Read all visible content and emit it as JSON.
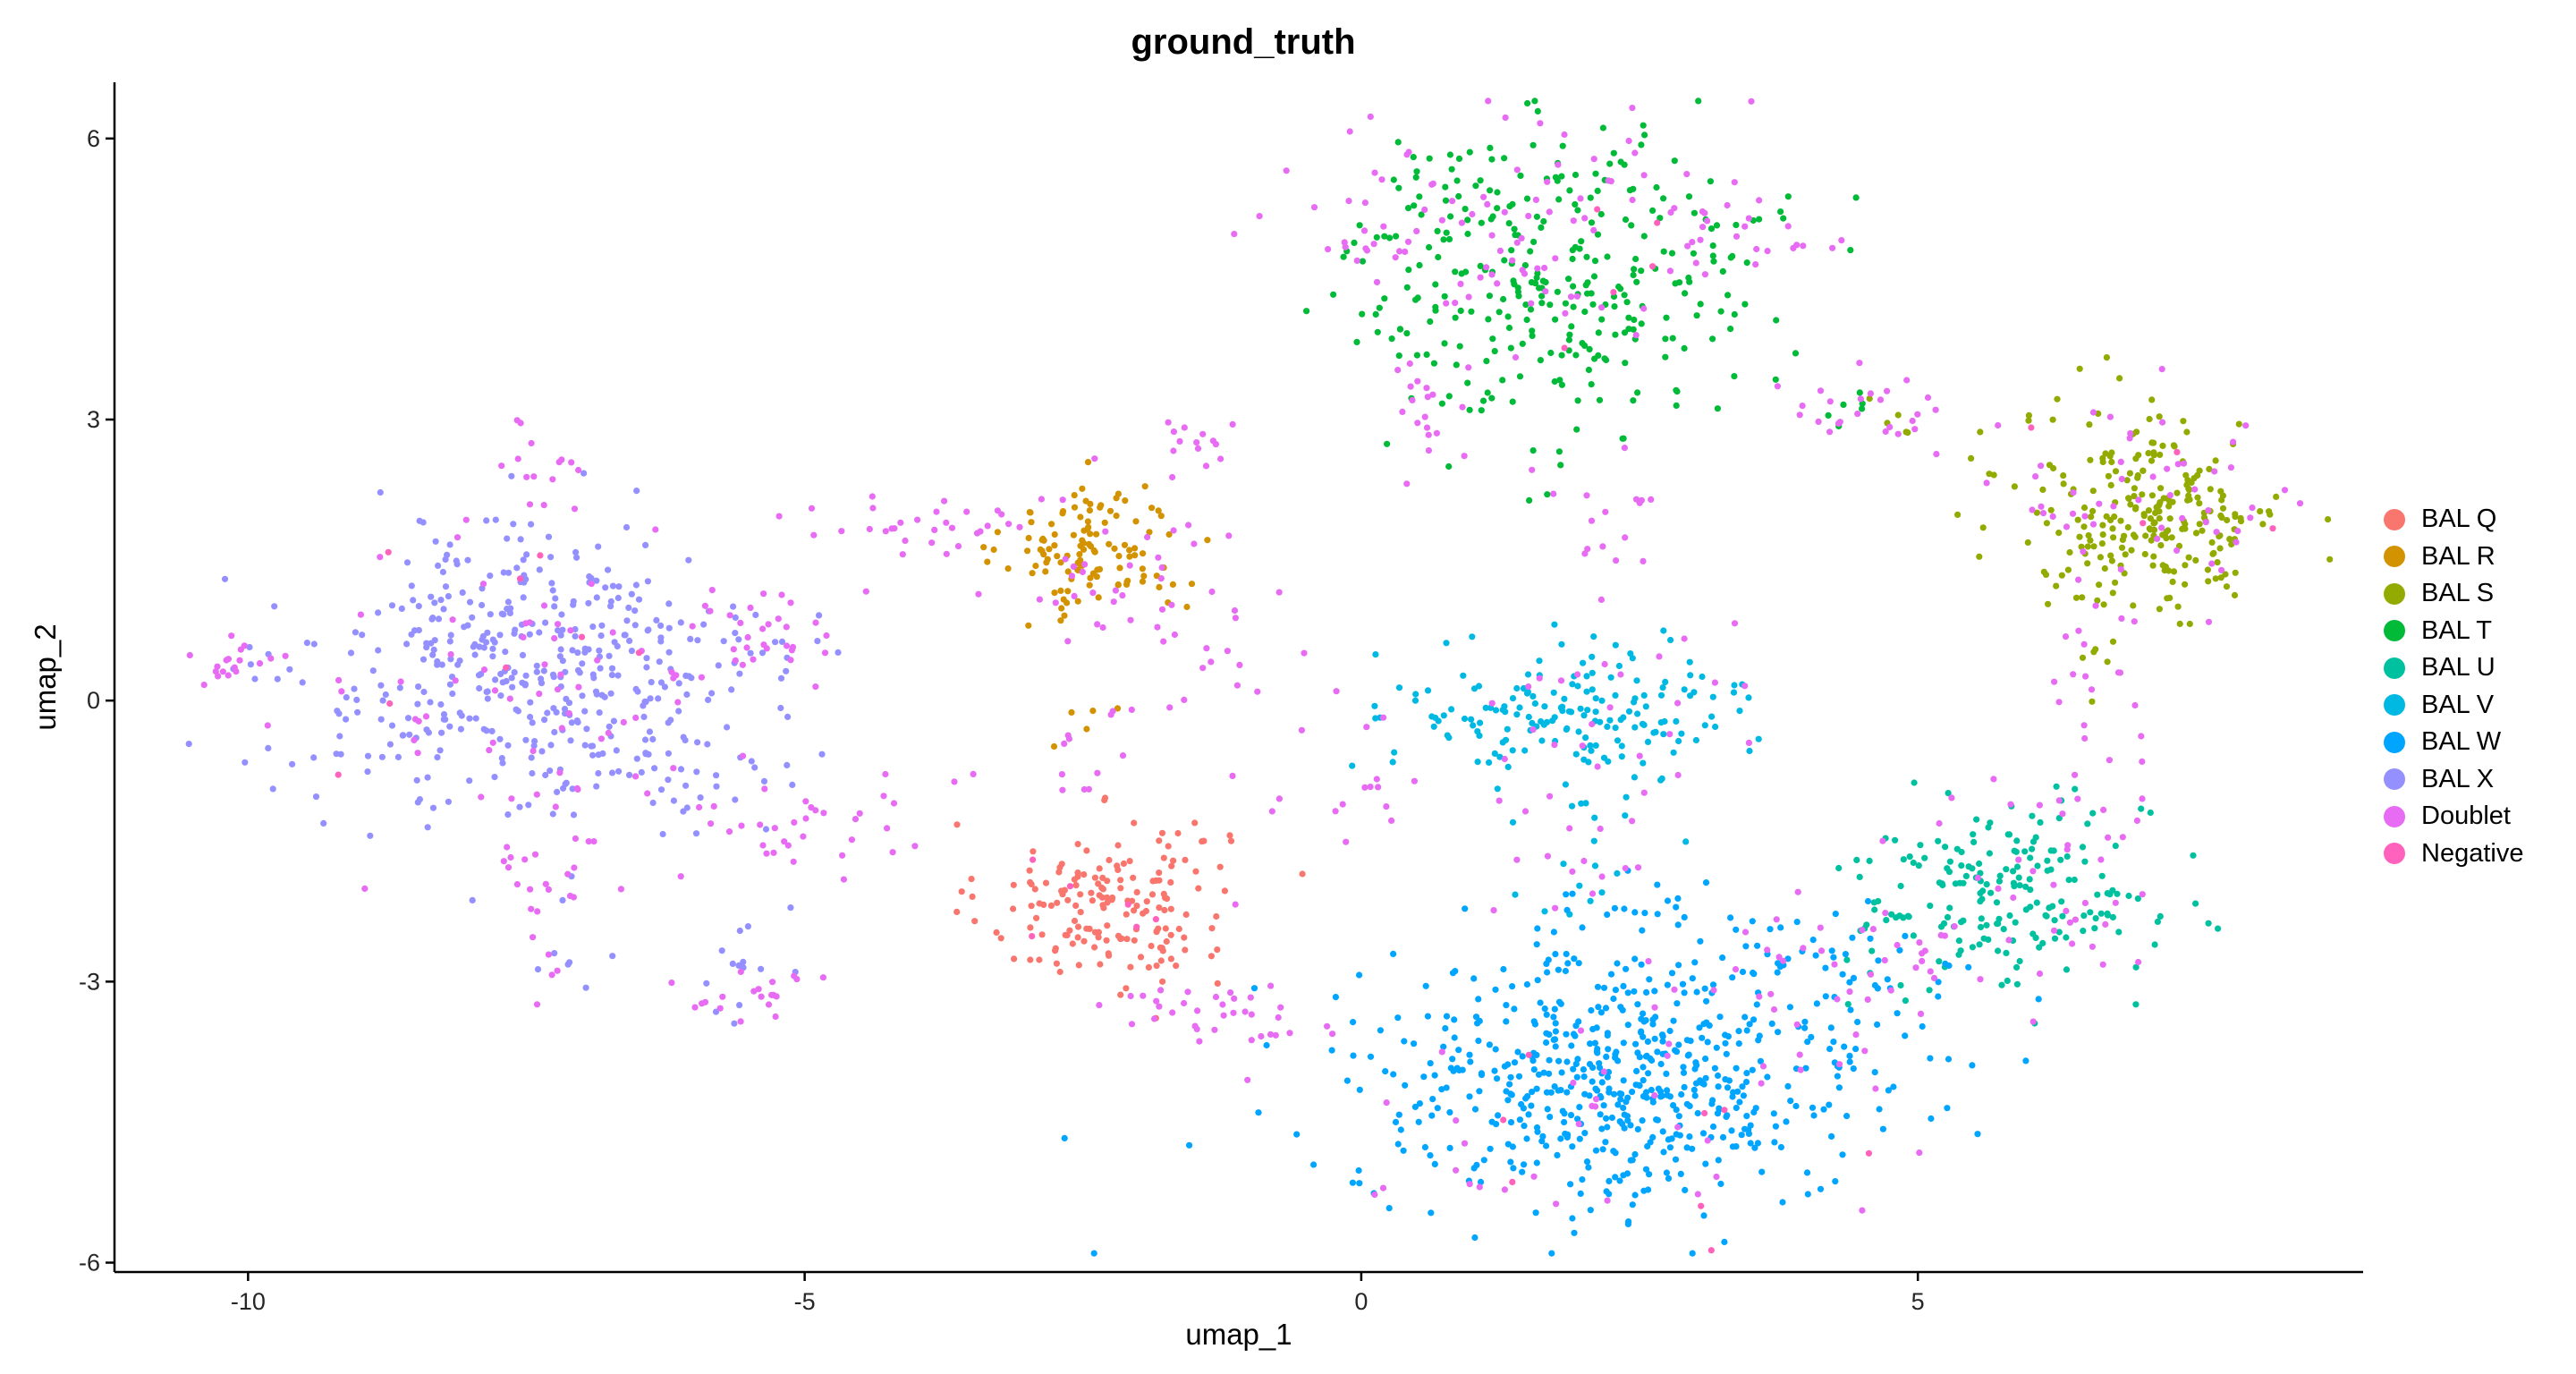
{
  "chart_data": {
    "type": "scatter",
    "title": "ground_truth",
    "xlabel": "umap_1",
    "ylabel": "umap_2",
    "xlim": [
      -11.2,
      9.0
    ],
    "ylim": [
      -6.1,
      6.6
    ],
    "x_ticks": [
      -10,
      -5,
      0,
      5
    ],
    "x_tick_labels": [
      "-10",
      "-5",
      "0",
      "5"
    ],
    "y_ticks": [
      -6,
      -3,
      0,
      3,
      6
    ],
    "y_tick_labels": [
      "-6",
      "-3",
      "0",
      "3",
      "6"
    ],
    "grid": false,
    "legend_position": "right",
    "legend": [
      {
        "name": "BAL Q",
        "color": "#F8766D"
      },
      {
        "name": "BAL R",
        "color": "#D39200"
      },
      {
        "name": "BAL S",
        "color": "#93AA00"
      },
      {
        "name": "BAL T",
        "color": "#00BA38"
      },
      {
        "name": "BAL U",
        "color": "#00C19F"
      },
      {
        "name": "BAL V",
        "color": "#00B9E3"
      },
      {
        "name": "BAL W",
        "color": "#00A5FF"
      },
      {
        "name": "BAL X",
        "color": "#9590FF"
      },
      {
        "name": "Doublet",
        "color": "#E76BF3"
      },
      {
        "name": "Negative",
        "color": "#FF62BC"
      }
    ],
    "series": [
      {
        "name": "BAL Q",
        "clusters": [
          {
            "cx": -2.3,
            "cy": -2.2,
            "sx": 0.55,
            "sy": 0.45,
            "n": 160
          },
          {
            "cx": -1.7,
            "cy": -1.6,
            "sx": 0.2,
            "sy": 0.25,
            "n": 12
          }
        ]
      },
      {
        "name": "BAL R",
        "clusters": [
          {
            "cx": -2.4,
            "cy": 1.6,
            "sx": 0.4,
            "sy": 0.35,
            "n": 120
          },
          {
            "cx": -2.5,
            "cy": -0.3,
            "sx": 0.15,
            "sy": 0.2,
            "n": 5
          }
        ]
      },
      {
        "name": "BAL S",
        "clusters": [
          {
            "cx": 7.1,
            "cy": 2.0,
            "sx": 0.6,
            "sy": 0.55,
            "n": 250
          },
          {
            "cx": 6.6,
            "cy": 0.4,
            "sx": 0.15,
            "sy": 0.2,
            "n": 6
          },
          {
            "cx": 4.8,
            "cy": 3.0,
            "sx": 0.15,
            "sy": 0.15,
            "n": 5
          }
        ]
      },
      {
        "name": "BAL T",
        "clusters": [
          {
            "cx": 1.7,
            "cy": 4.6,
            "sx": 0.95,
            "sy": 0.75,
            "n": 300
          },
          {
            "cx": 3.2,
            "cy": 5.1,
            "sx": 0.4,
            "sy": 0.15,
            "n": 10
          },
          {
            "cx": 1.8,
            "cy": 2.7,
            "sx": 0.35,
            "sy": 0.35,
            "n": 10
          },
          {
            "cx": 4.5,
            "cy": 3.1,
            "sx": 0.3,
            "sy": 0.15,
            "n": 6
          }
        ]
      },
      {
        "name": "BAL U",
        "clusters": [
          {
            "cx": 5.8,
            "cy": -2.1,
            "sx": 0.65,
            "sy": 0.5,
            "n": 190
          },
          {
            "cx": 4.6,
            "cy": -1.8,
            "sx": 0.2,
            "sy": 0.2,
            "n": 6
          }
        ]
      },
      {
        "name": "BAL V",
        "clusters": [
          {
            "cx": 1.9,
            "cy": -0.1,
            "sx": 0.8,
            "sy": 0.35,
            "n": 170
          },
          {
            "cx": 2.0,
            "cy": -1.5,
            "sx": 0.35,
            "sy": 0.5,
            "n": 22
          }
        ]
      },
      {
        "name": "BAL W",
        "clusters": [
          {
            "cx": 2.3,
            "cy": -4.1,
            "sx": 1.2,
            "sy": 0.65,
            "n": 560
          },
          {
            "cx": 4.3,
            "cy": -3.0,
            "sx": 0.6,
            "sy": 0.4,
            "n": 50
          },
          {
            "cx": 2.3,
            "cy": -2.5,
            "sx": 0.6,
            "sy": 0.4,
            "n": 35
          }
        ]
      },
      {
        "name": "BAL X",
        "clusters": [
          {
            "cx": -7.5,
            "cy": 0.3,
            "sx": 1.0,
            "sy": 0.75,
            "n": 420
          },
          {
            "cx": -5.4,
            "cy": 0.6,
            "sx": 0.35,
            "sy": 0.25,
            "n": 15
          },
          {
            "cx": -5.6,
            "cy": -2.9,
            "sx": 0.25,
            "sy": 0.25,
            "n": 14
          },
          {
            "cx": -6.2,
            "cy": -0.9,
            "sx": 0.5,
            "sy": 0.3,
            "n": 25
          },
          {
            "cx": -7.2,
            "cy": -2.6,
            "sx": 0.15,
            "sy": 0.3,
            "n": 8
          }
        ]
      },
      {
        "name": "Doublet",
        "clusters": [
          {
            "cx": -7.5,
            "cy": 0.2,
            "sx": 1.1,
            "sy": 0.9,
            "n": 70
          },
          {
            "cx": -10.0,
            "cy": 0.4,
            "sx": 0.25,
            "sy": 0.12,
            "n": 18
          },
          {
            "cx": -7.3,
            "cy": -1.8,
            "sx": 0.25,
            "sy": 0.6,
            "n": 25
          },
          {
            "cx": -7.2,
            "cy": 2.5,
            "sx": 0.2,
            "sy": 0.25,
            "n": 14
          },
          {
            "cx": -5.4,
            "cy": 0.7,
            "sx": 0.4,
            "sy": 0.3,
            "n": 30
          },
          {
            "cx": -5.4,
            "cy": -3.1,
            "sx": 0.25,
            "sy": 0.15,
            "n": 20
          },
          {
            "cx": -4.8,
            "cy": -1.4,
            "sx": 0.6,
            "sy": 0.3,
            "n": 30
          },
          {
            "cx": -4.0,
            "cy": 1.9,
            "sx": 0.6,
            "sy": 0.15,
            "n": 30
          },
          {
            "cx": -2.4,
            "cy": 1.3,
            "sx": 0.5,
            "sy": 0.6,
            "n": 35
          },
          {
            "cx": -1.4,
            "cy": 2.8,
            "sx": 0.35,
            "sy": 0.3,
            "n": 14
          },
          {
            "cx": -1.3,
            "cy": 0.7,
            "sx": 0.3,
            "sy": 0.4,
            "n": 14
          },
          {
            "cx": -2.5,
            "cy": -0.4,
            "sx": 0.2,
            "sy": 0.3,
            "n": 12
          },
          {
            "cx": -1.3,
            "cy": -3.4,
            "sx": 0.5,
            "sy": 0.25,
            "n": 35
          },
          {
            "cx": -0.3,
            "cy": -1.0,
            "sx": 0.5,
            "sy": 0.4,
            "n": 15
          },
          {
            "cx": 1.2,
            "cy": 5.2,
            "sx": 1.0,
            "sy": 0.6,
            "n": 90
          },
          {
            "cx": 0.6,
            "cy": 3.0,
            "sx": 0.25,
            "sy": 0.4,
            "n": 20
          },
          {
            "cx": 3.3,
            "cy": 5.0,
            "sx": 0.5,
            "sy": 0.25,
            "n": 25
          },
          {
            "cx": 4.6,
            "cy": 3.1,
            "sx": 0.4,
            "sy": 0.2,
            "n": 25
          },
          {
            "cx": 2.3,
            "cy": 2.0,
            "sx": 0.25,
            "sy": 0.4,
            "n": 15
          },
          {
            "cx": 1.9,
            "cy": 0.0,
            "sx": 0.9,
            "sy": 0.5,
            "n": 25
          },
          {
            "cx": 2.0,
            "cy": -1.5,
            "sx": 0.4,
            "sy": 0.5,
            "n": 20
          },
          {
            "cx": 3.8,
            "cy": -3.0,
            "sx": 0.7,
            "sy": 0.5,
            "n": 30
          },
          {
            "cx": 2.3,
            "cy": -4.3,
            "sx": 1.2,
            "sy": 0.7,
            "n": 40
          },
          {
            "cx": 7.0,
            "cy": 2.1,
            "sx": 0.65,
            "sy": 0.6,
            "n": 55
          },
          {
            "cx": 6.6,
            "cy": -0.3,
            "sx": 0.3,
            "sy": 0.7,
            "n": 25
          },
          {
            "cx": 5.8,
            "cy": -2.1,
            "sx": 0.7,
            "sy": 0.55,
            "n": 40
          }
        ]
      },
      {
        "name": "Negative",
        "clusters": [
          {
            "cx": -7.7,
            "cy": 0.8,
            "sx": 0.8,
            "sy": 0.8,
            "n": 8
          },
          {
            "cx": -2.2,
            "cy": -2.2,
            "sx": 0.5,
            "sy": 0.4,
            "n": 6
          },
          {
            "cx": 2.2,
            "cy": -4.4,
            "sx": 1.0,
            "sy": 0.6,
            "n": 8
          },
          {
            "cx": 1.6,
            "cy": 4.6,
            "sx": 0.8,
            "sy": 0.6,
            "n": 5
          },
          {
            "cx": 7.0,
            "cy": 1.9,
            "sx": 0.5,
            "sy": 0.5,
            "n": 4
          }
        ]
      }
    ]
  }
}
